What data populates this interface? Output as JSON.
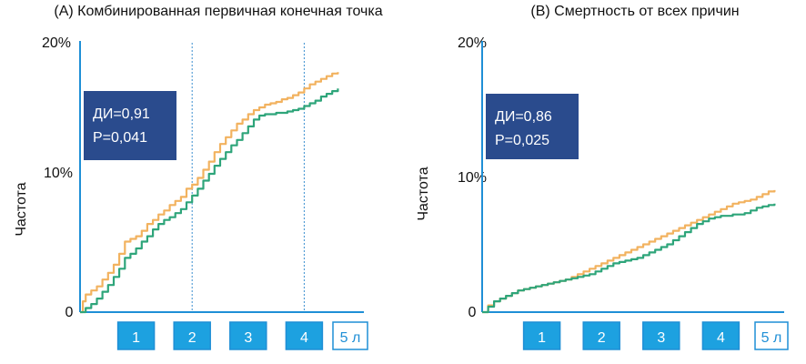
{
  "chart_data": [
    {
      "type": "line",
      "title": "(A)  Комбинированная первичная конечная точка",
      "ylabel": "Частота",
      "xlabel": "",
      "xlim": [
        0,
        5
      ],
      "ylim": [
        0,
        20
      ],
      "y_ticks": [
        "0",
        "10%",
        "20%"
      ],
      "x_ticks": [
        "1",
        "2",
        "3",
        "4",
        "5 л"
      ],
      "x_tick_values": [
        1,
        2,
        3,
        4,
        5
      ],
      "vlines": [
        2,
        4
      ],
      "annotation": [
        "ДИ=0,91",
        "P=0,041"
      ],
      "series": [
        {
          "color": "#f2b25f",
          "x": [
            0,
            0.05,
            0.1,
            0.2,
            0.3,
            0.4,
            0.5,
            0.6,
            0.7,
            0.8,
            0.9,
            1.0,
            1.1,
            1.2,
            1.3,
            1.4,
            1.5,
            1.6,
            1.7,
            1.8,
            1.9,
            2.0,
            2.1,
            2.2,
            2.3,
            2.4,
            2.5,
            2.6,
            2.7,
            2.8,
            2.9,
            3.0,
            3.1,
            3.2,
            3.3,
            3.4,
            3.5,
            3.6,
            3.7,
            3.8,
            3.9,
            4.0,
            4.1,
            4.2,
            4.3,
            4.4,
            4.5,
            4.6
          ],
          "y": [
            0,
            0.8,
            1.3,
            1.6,
            1.9,
            2.4,
            2.9,
            3.5,
            4.3,
            5.2,
            5.4,
            5.6,
            6.0,
            6.5,
            6.8,
            7.2,
            7.5,
            7.9,
            8.2,
            8.5,
            9.1,
            9.4,
            9.9,
            10.5,
            11.1,
            11.8,
            12.4,
            12.9,
            13.4,
            13.9,
            14.2,
            14.6,
            14.9,
            15.1,
            15.3,
            15.4,
            15.5,
            15.7,
            15.8,
            16.0,
            16.2,
            16.5,
            16.8,
            17.0,
            17.2,
            17.4,
            17.6,
            17.7
          ]
        },
        {
          "color": "#2ea57a",
          "x": [
            0,
            0.1,
            0.2,
            0.3,
            0.4,
            0.5,
            0.6,
            0.7,
            0.8,
            0.9,
            1.0,
            1.1,
            1.2,
            1.3,
            1.4,
            1.5,
            1.6,
            1.7,
            1.8,
            1.9,
            2.0,
            2.1,
            2.2,
            2.3,
            2.4,
            2.5,
            2.6,
            2.7,
            2.8,
            2.9,
            3.0,
            3.1,
            3.2,
            3.3,
            3.4,
            3.5,
            3.6,
            3.7,
            3.8,
            3.9,
            4.0,
            4.1,
            4.2,
            4.3,
            4.4,
            4.5,
            4.6
          ],
          "y": [
            0,
            0.3,
            0.6,
            1.0,
            1.5,
            2.0,
            2.6,
            3.2,
            4.0,
            4.3,
            4.7,
            5.2,
            5.6,
            6.1,
            6.5,
            6.8,
            7.0,
            7.3,
            7.6,
            8.1,
            8.6,
            9.1,
            9.7,
            10.2,
            10.8,
            11.3,
            11.8,
            12.3,
            12.7,
            13.2,
            13.7,
            14.2,
            14.5,
            14.6,
            14.6,
            14.7,
            14.7,
            14.8,
            14.9,
            15.0,
            15.2,
            15.4,
            15.6,
            15.9,
            16.1,
            16.3,
            16.5
          ]
        }
      ]
    },
    {
      "type": "line",
      "title": "(B) Смертность от всех причин",
      "ylabel": "Частота",
      "xlabel": "",
      "xlim": [
        0,
        5
      ],
      "ylim": [
        0,
        20
      ],
      "y_ticks": [
        "0",
        "10%",
        "20%"
      ],
      "x_ticks": [
        "1",
        "2",
        "3",
        "4",
        "5 л"
      ],
      "x_tick_values": [
        1,
        2,
        3,
        4,
        5
      ],
      "vlines": [],
      "annotation": [
        "ДИ=0,86",
        "P=0,025"
      ],
      "series": [
        {
          "color": "#f2b25f",
          "x": [
            0,
            0.1,
            0.2,
            0.3,
            0.4,
            0.5,
            0.6,
            0.7,
            0.8,
            0.9,
            1.0,
            1.1,
            1.2,
            1.3,
            1.4,
            1.5,
            1.6,
            1.7,
            1.8,
            1.9,
            2.0,
            2.1,
            2.2,
            2.3,
            2.4,
            2.5,
            2.6,
            2.7,
            2.8,
            2.9,
            3.0,
            3.1,
            3.2,
            3.3,
            3.4,
            3.5,
            3.6,
            3.7,
            3.8,
            3.9,
            4.0,
            4.1,
            4.2,
            4.3,
            4.4,
            4.5,
            4.6,
            4.7,
            4.8,
            4.9
          ],
          "y": [
            0,
            0.5,
            0.8,
            1.0,
            1.2,
            1.4,
            1.6,
            1.7,
            1.8,
            1.9,
            2.0,
            2.1,
            2.2,
            2.3,
            2.4,
            2.6,
            2.8,
            3.0,
            3.2,
            3.4,
            3.6,
            3.8,
            4.0,
            4.2,
            4.4,
            4.6,
            4.8,
            5.0,
            5.2,
            5.4,
            5.6,
            5.8,
            6.0,
            6.2,
            6.4,
            6.6,
            6.8,
            7.0,
            7.2,
            7.4,
            7.6,
            7.8,
            8.0,
            8.1,
            8.2,
            8.3,
            8.5,
            8.7,
            8.9,
            9.0
          ]
        },
        {
          "color": "#2ea57a",
          "x": [
            0,
            0.1,
            0.2,
            0.3,
            0.4,
            0.5,
            0.6,
            0.7,
            0.8,
            0.9,
            1.0,
            1.1,
            1.2,
            1.3,
            1.4,
            1.5,
            1.6,
            1.7,
            1.8,
            1.9,
            2.0,
            2.1,
            2.2,
            2.3,
            2.4,
            2.5,
            2.6,
            2.7,
            2.8,
            2.9,
            3.0,
            3.1,
            3.2,
            3.3,
            3.4,
            3.5,
            3.6,
            3.7,
            3.8,
            3.9,
            4.0,
            4.1,
            4.2,
            4.3,
            4.4,
            4.5,
            4.6,
            4.7,
            4.8,
            4.9
          ],
          "y": [
            0,
            0.4,
            0.8,
            1.0,
            1.2,
            1.4,
            1.6,
            1.7,
            1.8,
            1.9,
            2.0,
            2.1,
            2.2,
            2.3,
            2.4,
            2.5,
            2.6,
            2.7,
            2.8,
            3.0,
            3.2,
            3.4,
            3.6,
            3.7,
            3.8,
            3.9,
            4.0,
            4.2,
            4.4,
            4.6,
            4.8,
            5.0,
            5.3,
            5.6,
            5.9,
            6.2,
            6.5,
            6.7,
            6.9,
            7.0,
            7.1,
            7.1,
            7.2,
            7.2,
            7.3,
            7.5,
            7.7,
            7.8,
            7.9,
            8.0
          ]
        }
      ]
    }
  ]
}
